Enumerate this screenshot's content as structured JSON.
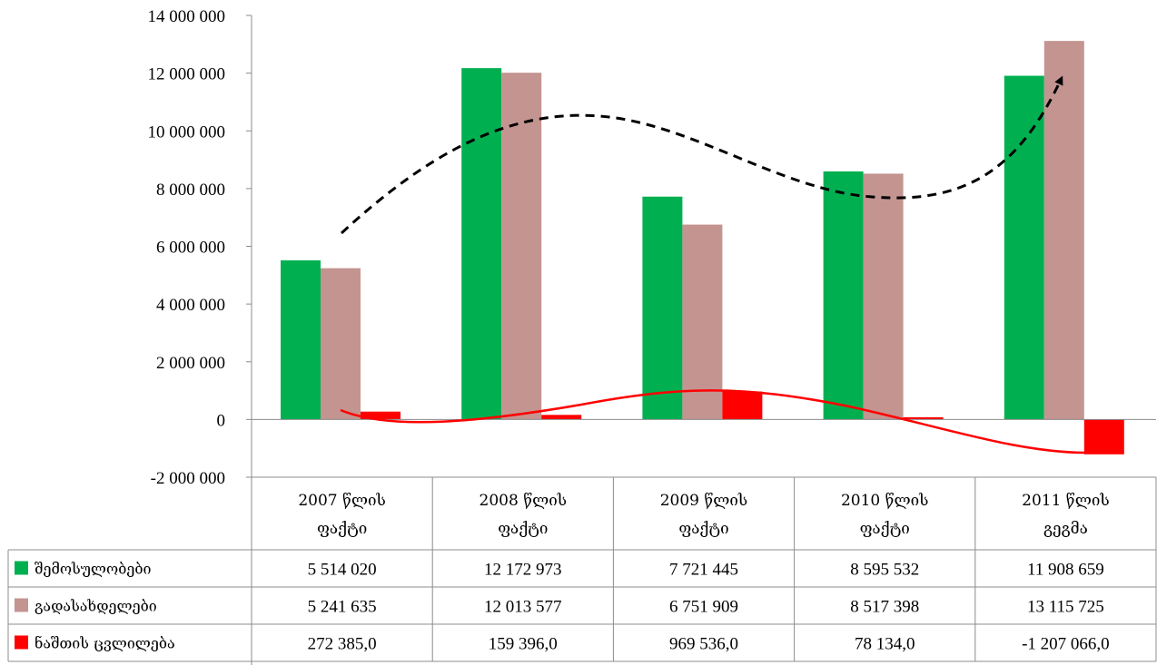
{
  "chart_data": {
    "type": "bar",
    "title": "",
    "xlabel": "",
    "ylabel": "",
    "ylim": [
      -2000000,
      14000000
    ],
    "yticks": [
      -2000000,
      0,
      2000000,
      4000000,
      6000000,
      8000000,
      10000000,
      12000000,
      14000000
    ],
    "ytick_labels": [
      "-2 000 000",
      "0",
      "2 000 000",
      "4 000 000",
      "6 000 000",
      "8 000 000",
      "10 000 000",
      "12 000 000",
      "14 000 000"
    ],
    "grid": false,
    "legend": "table-left",
    "categories": [
      [
        "2007 წლის",
        "ფაქტი"
      ],
      [
        "2008 წლის",
        "ფაქტი"
      ],
      [
        "2009 წლის",
        "ფაქტი"
      ],
      [
        "2010 წლის",
        "ფაქტი"
      ],
      [
        "2011 წლის",
        "გეგმა"
      ]
    ],
    "series": [
      {
        "name": "შემოსულობები",
        "color": "#00b050",
        "values": [
          5514020,
          12172973,
          7721445,
          8595532,
          11908659
        ],
        "labels": [
          "5 514 020",
          "12 172 973",
          "7 721 445",
          "8 595 532",
          "11 908 659"
        ]
      },
      {
        "name": "გადასახდელები",
        "color": "#c49490",
        "values": [
          5241635,
          12013577,
          6751909,
          8517398,
          13115725
        ],
        "labels": [
          "5 241 635",
          "12 013 577",
          "6 751 909",
          "8 517 398",
          "13 115 725"
        ]
      },
      {
        "name": "ნაშთის ცვლილება",
        "color": "#ff0000",
        "values": [
          272385.0,
          159396.0,
          969536.0,
          78134.0,
          -1207066.0
        ],
        "labels": [
          "272 385,0",
          "159 396,0",
          "969 536,0",
          "78 134,0",
          "-1 207 066,0"
        ]
      }
    ],
    "annotations": [
      {
        "kind": "dashed-trend-arrow",
        "color": "#000000"
      },
      {
        "kind": "trend-curve",
        "color": "#ff0000"
      }
    ]
  }
}
